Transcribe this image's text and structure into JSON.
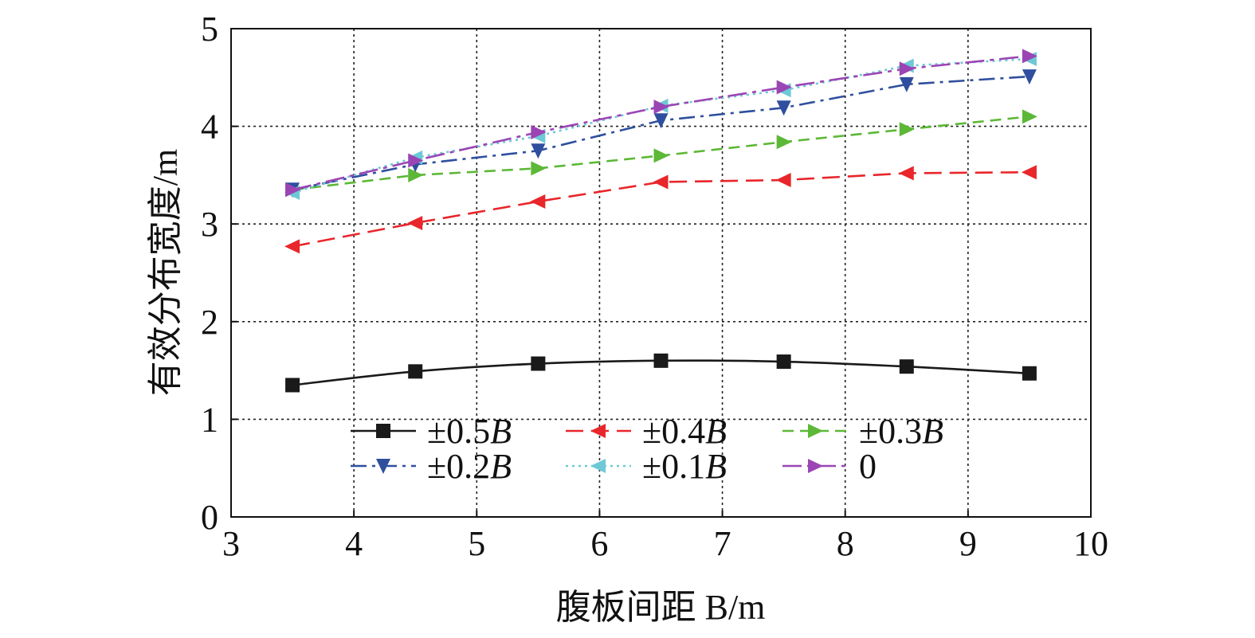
{
  "chart_data": {
    "type": "line",
    "title": "",
    "xlabel": "腹板间距 B/m",
    "ylabel": "有效分布宽度/m",
    "xlim": [
      3,
      10
    ],
    "ylim": [
      0,
      5
    ],
    "xticks": [
      "3",
      "4",
      "5",
      "6",
      "7",
      "8",
      "9",
      "10"
    ],
    "yticks": [
      "0",
      "1",
      "2",
      "3",
      "4",
      "5"
    ],
    "grid": true,
    "legend_position": "bottom-center inside plot",
    "x": [
      3.5,
      4.5,
      5.5,
      6.5,
      7.5,
      8.5,
      9.5
    ],
    "series": [
      {
        "name": "±0.5B",
        "prefix": "±0.5",
        "suffix": "B",
        "color": "#1a1a1a",
        "marker": "square",
        "dash": "solid",
        "values": [
          1.35,
          1.49,
          1.57,
          1.6,
          1.59,
          1.54,
          1.47
        ]
      },
      {
        "name": "±0.4B",
        "prefix": "±0.4",
        "suffix": "B",
        "color": "#e8262b",
        "marker": "triangle-left",
        "dash": "longdash",
        "values": [
          2.77,
          3.01,
          3.23,
          3.43,
          3.45,
          3.52,
          3.53
        ]
      },
      {
        "name": "±0.3B",
        "prefix": "±0.3",
        "suffix": "B",
        "color": "#5cb836",
        "marker": "triangle-right",
        "dash": "dash",
        "values": [
          3.35,
          3.5,
          3.57,
          3.7,
          3.84,
          3.97,
          4.1
        ]
      },
      {
        "name": "±0.2B",
        "prefix": "±0.2",
        "suffix": "B",
        "color": "#2f4f9e",
        "marker": "triangle-down",
        "dash": "dashdot",
        "values": [
          3.35,
          3.61,
          3.75,
          4.06,
          4.19,
          4.43,
          4.51
        ]
      },
      {
        "name": "±0.1B",
        "prefix": "±0.1",
        "suffix": "B",
        "color": "#6ec9d6",
        "marker": "triangle-left",
        "dash": "dot",
        "values": [
          3.32,
          3.68,
          3.9,
          4.21,
          4.37,
          4.62,
          4.69
        ]
      },
      {
        "name": "0",
        "prefix": "0",
        "suffix": "",
        "color": "#9b45b4",
        "marker": "triangle-right",
        "dash": "longdashdot",
        "values": [
          3.35,
          3.65,
          3.94,
          4.2,
          4.4,
          4.59,
          4.72
        ]
      }
    ]
  }
}
